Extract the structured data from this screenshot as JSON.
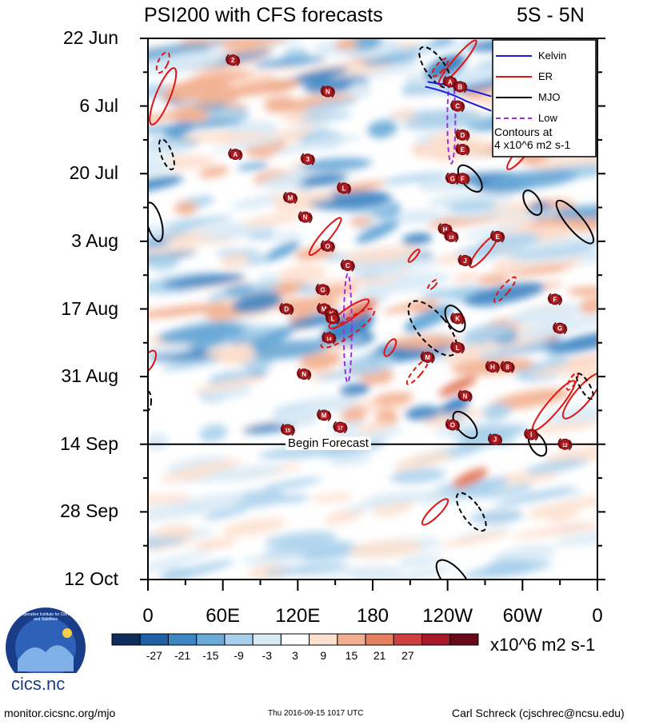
{
  "chart_data": {
    "type": "heatmap",
    "title": "PSI200 with CFS forecasts",
    "region": "5S - 5N",
    "x_tick_labels": [
      "0",
      "60E",
      "120E",
      "180",
      "120W",
      "60W",
      "0"
    ],
    "x_longitudes": [
      0,
      60,
      120,
      180,
      240,
      300,
      360
    ],
    "xlim": [
      0,
      360
    ],
    "y_tick_labels": [
      "22 Jun",
      "6 Jul",
      "20 Jul",
      "3 Aug",
      "17 Aug",
      "31 Aug",
      "14 Sep",
      "28 Sep",
      "12 Oct"
    ],
    "y_days": [
      0,
      14,
      28,
      42,
      56,
      70,
      84,
      98,
      112
    ],
    "ylim_days": [
      0,
      112
    ],
    "forecast_day": 84,
    "forecast_label": "Begin Forecast",
    "legend_entries": [
      {
        "name": "Kelvin",
        "color": "#1c1cd8",
        "dash": false
      },
      {
        "name": "ER",
        "color": "#e01414",
        "dash": false
      },
      {
        "name": "MJO",
        "color": "#000000",
        "dash": false
      },
      {
        "name": "Low",
        "color": "#9b30e0",
        "dash": true
      }
    ],
    "contour_note_line1": "Contours at",
    "contour_note_line2": "4 x10^6 m2 s-1",
    "colorbar": {
      "labels": [
        "-27",
        "-21",
        "-15",
        "-9",
        "-3",
        "3",
        "9",
        "15",
        "21",
        "27"
      ],
      "colors": [
        "#0d2d5c",
        "#1f5fa6",
        "#3d86c4",
        "#6aaad8",
        "#a8d0ec",
        "#d8eaf6",
        "#ffffff",
        "#fde0cf",
        "#f3b090",
        "#e58060",
        "#d04040",
        "#a61a2a",
        "#6a0818"
      ],
      "unit": "x10^6 m2 s-1"
    },
    "storms": [
      {
        "id": "2",
        "lon": 68,
        "day": 4.5
      },
      {
        "id": "N",
        "lon": 144,
        "day": 11
      },
      {
        "id": "A",
        "lon": 70,
        "day": 24
      },
      {
        "id": "3",
        "lon": 128,
        "day": 25
      },
      {
        "id": "L",
        "lon": 157,
        "day": 31
      },
      {
        "id": "M",
        "lon": 114,
        "day": 33
      },
      {
        "id": "N",
        "lon": 126,
        "day": 37
      },
      {
        "id": "O",
        "lon": 144,
        "day": 43
      },
      {
        "id": "C",
        "lon": 160,
        "day": 47
      },
      {
        "id": "G",
        "lon": 140,
        "day": 52
      },
      {
        "id": "D",
        "lon": 111,
        "day": 56
      },
      {
        "id": "M",
        "lon": 141,
        "day": 56
      },
      {
        "id": "K",
        "lon": 147,
        "day": 57
      },
      {
        "id": "L",
        "lon": 148,
        "day": 58
      },
      {
        "id": "14",
        "lon": 145,
        "day": 62
      },
      {
        "id": "N",
        "lon": 125,
        "day": 69.5
      },
      {
        "id": "M",
        "lon": 141,
        "day": 78
      },
      {
        "id": "15",
        "lon": 112,
        "day": 81
      },
      {
        "id": "17",
        "lon": 154,
        "day": 80.5
      },
      {
        "id": "A",
        "lon": 242,
        "day": 9
      },
      {
        "id": "B",
        "lon": 250,
        "day": 10
      },
      {
        "id": "C",
        "lon": 248,
        "day": 14
      },
      {
        "id": "D",
        "lon": 252,
        "day": 20
      },
      {
        "id": "E",
        "lon": 252,
        "day": 23
      },
      {
        "id": "G",
        "lon": 244,
        "day": 29
      },
      {
        "id": "F",
        "lon": 252,
        "day": 29
      },
      {
        "id": "H",
        "lon": 238,
        "day": 39.5
      },
      {
        "id": "10",
        "lon": 243,
        "day": 41
      },
      {
        "id": "E",
        "lon": 280,
        "day": 41
      },
      {
        "id": "J",
        "lon": 254,
        "day": 46
      },
      {
        "id": "K",
        "lon": 248,
        "day": 58
      },
      {
        "id": "L",
        "lon": 248,
        "day": 64
      },
      {
        "id": "M",
        "lon": 224,
        "day": 66
      },
      {
        "id": "H",
        "lon": 276,
        "day": 68
      },
      {
        "id": "8",
        "lon": 288,
        "day": 68
      },
      {
        "id": "N",
        "lon": 254,
        "day": 74
      },
      {
        "id": "O",
        "lon": 244,
        "day": 80
      },
      {
        "id": "J",
        "lon": 278,
        "day": 83
      },
      {
        "id": "F",
        "lon": 326,
        "day": 54
      },
      {
        "id": "G",
        "lon": 330,
        "day": 60
      },
      {
        "id": "I",
        "lon": 307,
        "day": 82
      },
      {
        "id": "12",
        "lon": 334,
        "day": 84
      }
    ]
  },
  "footer": {
    "left": "monitor.cicsnc.org/mjo",
    "center": "Thu 2016-09-15 1017 UTC",
    "right": "Carl Schreck (cjschrec@ncsu.edu)",
    "logo_text": "cics.nc",
    "logo_ring_text": "Cooperative Institute for Climate and Satellites"
  }
}
